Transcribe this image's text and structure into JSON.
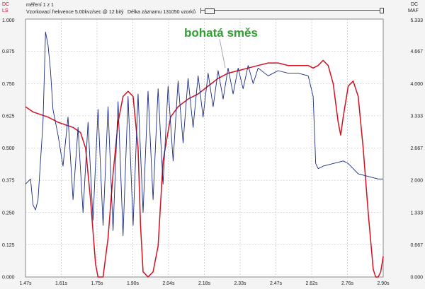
{
  "header": {
    "left_top_label": "DC",
    "left_bottom_label": "LS",
    "right_top_label": "DC",
    "right_bottom_label": "MAF",
    "record_label": "měření 1 z 1",
    "sampling_label": "Vzorkovací frekvence 5.00kvz/sec @ 12 bitý",
    "length_label": "Délka záznamu 131050 vzorků"
  },
  "colors": {
    "ls_series": "#d41020",
    "maf_series": "#1a2a80",
    "annotation": "#2ea02e",
    "grid": "#b8b8b8"
  },
  "chart_data": {
    "type": "line",
    "annotation": "bohatá směs",
    "x_ticks": [
      "1.47s",
      "1.61s",
      "1.75s",
      "1.90s",
      "2.04s",
      "2.18s",
      "2.33s",
      "2.47s",
      "2.62s",
      "2.76s",
      "2.90s"
    ],
    "xlim": [
      1.47,
      2.9
    ],
    "left_ticks": [
      "1.000",
      "0.875",
      "0.750",
      "0.625",
      "0.500",
      "0.375",
      "0.250",
      "0.125",
      "0.000"
    ],
    "left_ylim": [
      0,
      1.0
    ],
    "right_ticks": [
      "5.333",
      "4.667",
      "4.000",
      "3.333",
      "2.667",
      "2.000",
      "1.333",
      "0.667",
      "0.000"
    ],
    "right_ylim": [
      0,
      5.333
    ],
    "grid": true,
    "series": [
      {
        "axis": "left",
        "points": [
          [
            1.47,
            0.66
          ],
          [
            1.5,
            0.64
          ],
          [
            1.53,
            0.63
          ],
          [
            1.56,
            0.62
          ],
          [
            1.6,
            0.6
          ],
          [
            1.63,
            0.59
          ],
          [
            1.66,
            0.58
          ],
          [
            1.69,
            0.56
          ],
          [
            1.71,
            0.5
          ],
          [
            1.73,
            0.3
          ],
          [
            1.75,
            0.05
          ],
          [
            1.76,
            0.0
          ],
          [
            1.78,
            0.0
          ],
          [
            1.8,
            0.15
          ],
          [
            1.82,
            0.4
          ],
          [
            1.84,
            0.6
          ],
          [
            1.86,
            0.7
          ],
          [
            1.88,
            0.72
          ],
          [
            1.9,
            0.7
          ],
          [
            1.92,
            0.5
          ],
          [
            1.93,
            0.2
          ],
          [
            1.94,
            0.02
          ],
          [
            1.96,
            0.0
          ],
          [
            1.98,
            0.02
          ],
          [
            2.0,
            0.12
          ],
          [
            2.02,
            0.45
          ],
          [
            2.05,
            0.62
          ],
          [
            2.08,
            0.66
          ],
          [
            2.12,
            0.69
          ],
          [
            2.16,
            0.71
          ],
          [
            2.2,
            0.74
          ],
          [
            2.24,
            0.77
          ],
          [
            2.28,
            0.79
          ],
          [
            2.32,
            0.8
          ],
          [
            2.36,
            0.81
          ],
          [
            2.4,
            0.82
          ],
          [
            2.44,
            0.83
          ],
          [
            2.48,
            0.83
          ],
          [
            2.52,
            0.82
          ],
          [
            2.56,
            0.82
          ],
          [
            2.6,
            0.82
          ],
          [
            2.62,
            0.81
          ],
          [
            2.64,
            0.82
          ],
          [
            2.66,
            0.84
          ],
          [
            2.68,
            0.82
          ],
          [
            2.7,
            0.75
          ],
          [
            2.72,
            0.6
          ],
          [
            2.73,
            0.55
          ],
          [
            2.74,
            0.62
          ],
          [
            2.76,
            0.74
          ],
          [
            2.78,
            0.76
          ],
          [
            2.8,
            0.7
          ],
          [
            2.82,
            0.5
          ],
          [
            2.84,
            0.25
          ],
          [
            2.86,
            0.03
          ],
          [
            2.87,
            0.0
          ],
          [
            2.88,
            0.0
          ],
          [
            2.89,
            0.02
          ],
          [
            2.9,
            0.08
          ]
        ]
      },
      {
        "axis": "left",
        "points": [
          [
            1.47,
            0.36
          ],
          [
            1.49,
            0.38
          ],
          [
            1.5,
            0.28
          ],
          [
            1.51,
            0.26
          ],
          [
            1.52,
            0.3
          ],
          [
            1.53,
            0.45
          ],
          [
            1.54,
            0.6
          ],
          [
            1.55,
            0.95
          ],
          [
            1.56,
            0.9
          ],
          [
            1.57,
            0.8
          ],
          [
            1.58,
            0.65
          ],
          [
            1.6,
            0.55
          ],
          [
            1.62,
            0.43
          ],
          [
            1.64,
            0.62
          ],
          [
            1.66,
            0.3
          ],
          [
            1.68,
            0.58
          ],
          [
            1.7,
            0.25
          ],
          [
            1.72,
            0.6
          ],
          [
            1.74,
            0.22
          ],
          [
            1.76,
            0.65
          ],
          [
            1.78,
            0.2
          ],
          [
            1.8,
            0.66
          ],
          [
            1.82,
            0.18
          ],
          [
            1.84,
            0.68
          ],
          [
            1.86,
            0.16
          ],
          [
            1.88,
            0.7
          ],
          [
            1.9,
            0.2
          ],
          [
            1.92,
            0.71
          ],
          [
            1.94,
            0.25
          ],
          [
            1.96,
            0.72
          ],
          [
            1.98,
            0.3
          ],
          [
            2.0,
            0.73
          ],
          [
            2.02,
            0.36
          ],
          [
            2.04,
            0.74
          ],
          [
            2.06,
            0.45
          ],
          [
            2.08,
            0.76
          ],
          [
            2.1,
            0.52
          ],
          [
            2.12,
            0.77
          ],
          [
            2.14,
            0.58
          ],
          [
            2.16,
            0.78
          ],
          [
            2.18,
            0.62
          ],
          [
            2.2,
            0.79
          ],
          [
            2.22,
            0.66
          ],
          [
            2.24,
            0.8
          ],
          [
            2.26,
            0.69
          ],
          [
            2.28,
            0.81
          ],
          [
            2.3,
            0.71
          ],
          [
            2.32,
            0.81
          ],
          [
            2.34,
            0.73
          ],
          [
            2.36,
            0.82
          ],
          [
            2.38,
            0.75
          ],
          [
            2.4,
            0.81
          ],
          [
            2.44,
            0.78
          ],
          [
            2.48,
            0.8
          ],
          [
            2.52,
            0.79
          ],
          [
            2.56,
            0.79
          ],
          [
            2.6,
            0.78
          ],
          [
            2.62,
            0.7
          ],
          [
            2.63,
            0.44
          ],
          [
            2.64,
            0.42
          ],
          [
            2.66,
            0.43
          ],
          [
            2.7,
            0.44
          ],
          [
            2.74,
            0.45
          ],
          [
            2.76,
            0.44
          ],
          [
            2.78,
            0.42
          ],
          [
            2.8,
            0.4
          ],
          [
            2.84,
            0.39
          ],
          [
            2.88,
            0.38
          ],
          [
            2.9,
            0.38
          ]
        ]
      }
    ]
  }
}
